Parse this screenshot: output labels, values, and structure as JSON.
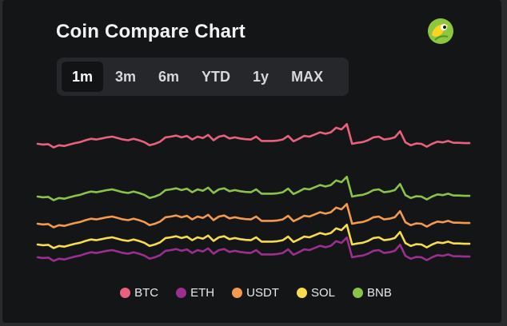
{
  "header": {
    "title": "Coin Compare Chart",
    "logo_icon": "gecko-icon"
  },
  "tabs": [
    {
      "label": "1m",
      "active": true
    },
    {
      "label": "3m",
      "active": false
    },
    {
      "label": "6m",
      "active": false
    },
    {
      "label": "YTD",
      "active": false
    },
    {
      "label": "1y",
      "active": false
    },
    {
      "label": "MAX",
      "active": false
    }
  ],
  "chart_data": {
    "type": "line",
    "series": [
      {
        "name": "BTC",
        "color": "#e8617e",
        "values": [
          100.0,
          99.8,
          99.9,
          99.0,
          99.6,
          99.4,
          99.8,
          100.2,
          100.5,
          101.0,
          101.4,
          101.2,
          101.5,
          101.8,
          102.0,
          101.6,
          101.2,
          101.0,
          101.4,
          101.0,
          100.5,
          99.6,
          100.0,
          100.6,
          101.8,
          102.0,
          102.3,
          101.8,
          102.2,
          101.2,
          102.0,
          101.6,
          102.5,
          101.0,
          102.0,
          102.3,
          101.5,
          101.8,
          101.5,
          101.3,
          101.2,
          102.0,
          100.8,
          100.8,
          100.8,
          100.9,
          101.2,
          102.2,
          100.7,
          101.4,
          102.2,
          102.0,
          102.6,
          103.2,
          102.8,
          103.2,
          104.5,
          104.0,
          105.5,
          100.0,
          100.3,
          100.5,
          101.0,
          101.8,
          102.0,
          101.2,
          101.4,
          101.8,
          103.5,
          100.4,
          99.6,
          100.1,
          100.0,
          99.2,
          100.0,
          100.6,
          100.4,
          100.8,
          100.3,
          100.3,
          100.2,
          100.2
        ]
      },
      {
        "name": "ETH",
        "color": "#9b2f8f",
        "values": [
          100.0,
          99.8,
          99.9,
          99.0,
          99.6,
          99.4,
          99.8,
          100.2,
          100.5,
          101.0,
          101.4,
          101.2,
          101.5,
          101.8,
          102.0,
          101.6,
          101.2,
          101.0,
          101.4,
          101.0,
          100.5,
          99.6,
          100.0,
          100.6,
          101.8,
          102.0,
          102.3,
          101.8,
          102.2,
          101.2,
          102.0,
          101.6,
          102.5,
          101.0,
          102.0,
          102.3,
          101.5,
          101.8,
          101.5,
          101.3,
          101.2,
          102.0,
          100.8,
          100.8,
          100.8,
          100.9,
          101.2,
          102.2,
          100.7,
          101.4,
          102.2,
          102.0,
          102.6,
          103.2,
          102.8,
          103.2,
          104.5,
          104.0,
          105.5,
          100.0,
          100.3,
          100.5,
          101.0,
          101.8,
          102.0,
          101.2,
          101.4,
          101.8,
          103.5,
          100.4,
          99.6,
          100.1,
          100.0,
          99.2,
          100.0,
          100.6,
          100.4,
          100.8,
          100.3,
          100.3,
          100.2,
          100.2
        ]
      },
      {
        "name": "USDT",
        "color": "#f39a4c",
        "values": [
          100.0,
          99.8,
          99.9,
          99.0,
          99.6,
          99.4,
          99.8,
          100.2,
          100.5,
          101.0,
          101.4,
          101.2,
          101.5,
          101.8,
          102.0,
          101.6,
          101.2,
          101.0,
          101.4,
          101.0,
          100.5,
          99.6,
          100.0,
          100.6,
          101.8,
          102.0,
          102.3,
          101.8,
          102.2,
          101.2,
          102.0,
          101.6,
          102.5,
          101.0,
          102.0,
          102.3,
          101.5,
          101.8,
          101.5,
          101.3,
          101.2,
          102.0,
          100.8,
          100.8,
          100.8,
          100.9,
          101.2,
          102.2,
          100.7,
          101.4,
          102.2,
          102.0,
          102.6,
          103.2,
          102.8,
          103.2,
          104.5,
          104.0,
          105.5,
          100.0,
          100.3,
          100.5,
          101.0,
          101.8,
          102.0,
          101.2,
          101.4,
          101.8,
          103.5,
          100.4,
          99.6,
          100.1,
          100.0,
          99.2,
          100.0,
          100.6,
          100.4,
          100.8,
          100.3,
          100.3,
          100.2,
          100.2
        ]
      },
      {
        "name": "SOL",
        "color": "#f7dc4f",
        "values": [
          100.0,
          99.8,
          99.9,
          99.0,
          99.6,
          99.4,
          99.8,
          100.2,
          100.5,
          101.0,
          101.4,
          101.2,
          101.5,
          101.8,
          102.0,
          101.6,
          101.2,
          101.0,
          101.4,
          101.0,
          100.5,
          99.6,
          100.0,
          100.6,
          101.8,
          102.0,
          102.3,
          101.8,
          102.2,
          101.2,
          102.0,
          101.6,
          102.5,
          101.0,
          102.0,
          102.3,
          101.5,
          101.8,
          101.5,
          101.3,
          101.2,
          102.0,
          100.8,
          100.8,
          100.8,
          100.9,
          101.2,
          102.2,
          100.7,
          101.4,
          102.2,
          102.0,
          102.6,
          103.2,
          102.8,
          103.2,
          104.5,
          104.0,
          105.5,
          100.0,
          100.3,
          100.5,
          101.0,
          101.8,
          102.0,
          101.2,
          101.4,
          101.8,
          103.5,
          100.4,
          99.6,
          100.1,
          100.0,
          99.2,
          100.0,
          100.6,
          100.4,
          100.8,
          100.3,
          100.3,
          100.2,
          100.2
        ]
      },
      {
        "name": "BNB",
        "color": "#8bc34a",
        "values": [
          100.0,
          99.8,
          99.9,
          99.0,
          99.6,
          99.4,
          99.8,
          100.2,
          100.5,
          101.0,
          101.4,
          101.2,
          101.5,
          101.8,
          102.0,
          101.6,
          101.2,
          101.0,
          101.4,
          101.0,
          100.5,
          99.6,
          100.0,
          100.6,
          101.8,
          102.0,
          102.3,
          101.8,
          102.2,
          101.2,
          102.0,
          101.6,
          102.5,
          101.0,
          102.0,
          102.3,
          101.5,
          101.8,
          101.5,
          101.3,
          101.2,
          102.0,
          100.8,
          100.8,
          100.8,
          100.9,
          101.2,
          102.2,
          100.7,
          101.4,
          102.2,
          102.0,
          102.6,
          103.2,
          102.8,
          103.2,
          104.5,
          104.0,
          105.5,
          100.0,
          100.3,
          100.5,
          101.0,
          101.8,
          102.0,
          101.2,
          101.4,
          101.8,
          103.5,
          100.4,
          99.6,
          100.1,
          100.0,
          99.2,
          100.0,
          100.6,
          100.4,
          100.8,
          100.3,
          100.3,
          100.2,
          100.2
        ]
      }
    ],
    "grid": false,
    "legend_position": "bottom-center"
  }
}
